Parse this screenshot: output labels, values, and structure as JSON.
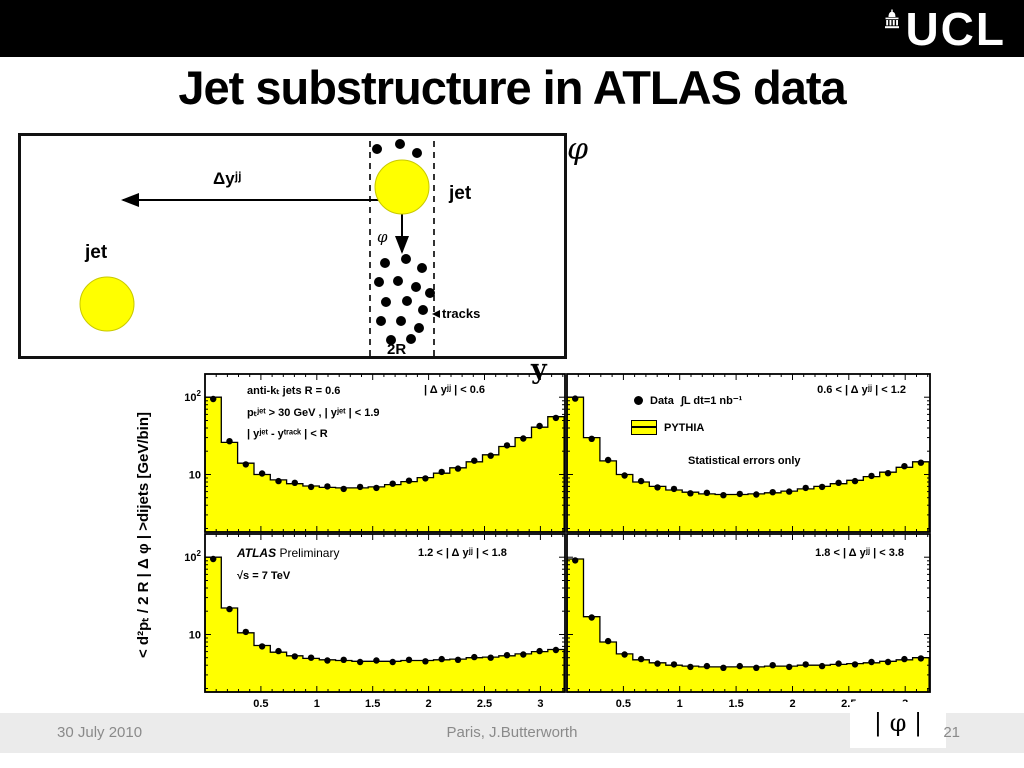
{
  "slide": {
    "title": "Jet substructure in ATLAS data",
    "logo_text": "UCL",
    "footer": {
      "date": "30 July 2010",
      "credit": "Paris, J.Butterworth",
      "page_number": "21"
    }
  },
  "diagram": {
    "dy_label": "Δyʲʲ",
    "jet_right_label": "jet",
    "jet_left_label": "jet",
    "phi_arrow_label": "φ",
    "tracks_label": "tracks",
    "width_label": "2R",
    "phi_axis_label": "φ",
    "y_axis_label": "y"
  },
  "chart_data": {
    "type": "area",
    "description": "Four-panel dijet |φ| distributions: yellow step histograms (PYTHIA) with black data points, log y-axis",
    "xlabel": "| φ |",
    "ylabel": "< d²pₜ / 2 R | Δ φ | >dijets   [GeV/bin]",
    "xlim": [
      0,
      3.22
    ],
    "ylim": [
      1.8,
      200
    ],
    "ylog": true,
    "x_ticks": [
      0.5,
      1,
      1.5,
      2,
      2.5,
      3
    ],
    "y_ticks": [
      10,
      100
    ],
    "bin_width": 0.146,
    "hist_fill": "#ffff00",
    "panels": [
      {
        "id": "top_left",
        "range_label": "| Δ yʲʲ | < 0.6",
        "hist": [
          100,
          26,
          14,
          10,
          8.5,
          7.6,
          7.1,
          6.8,
          6.7,
          6.7,
          6.9,
          7.4,
          8.1,
          9.1,
          10.4,
          12.2,
          14.6,
          18,
          23,
          30,
          41,
          56
        ],
        "points": [
          95,
          27,
          13.5,
          10.3,
          8.2,
          7.8,
          6.9,
          7.0,
          6.5,
          6.9,
          6.7,
          7.6,
          8.3,
          8.9,
          10.8,
          11.9,
          15.1,
          17.5,
          23.8,
          29.2,
          42.5,
          54
        ]
      },
      {
        "id": "top_right",
        "range_label": "0.6 < | Δ yʲʲ | < 1.2",
        "hist": [
          100,
          30,
          15,
          10,
          8,
          7,
          6.3,
          5.9,
          5.6,
          5.5,
          5.5,
          5.6,
          5.8,
          6.1,
          6.5,
          7.0,
          7.6,
          8.4,
          9.4,
          10.7,
          12.4,
          14.6
        ],
        "points": [
          96,
          29,
          15.4,
          9.7,
          8.2,
          6.8,
          6.5,
          5.7,
          5.8,
          5.4,
          5.6,
          5.5,
          5.9,
          6.0,
          6.7,
          6.9,
          7.8,
          8.2,
          9.6,
          10.4,
          12.8,
          14.2
        ]
      },
      {
        "id": "bottom_left",
        "range_label": "1.2 < | Δ yʲʲ | < 1.8",
        "hist": [
          100,
          22,
          10.5,
          7.2,
          5.9,
          5.3,
          4.9,
          4.7,
          4.6,
          4.5,
          4.5,
          4.5,
          4.6,
          4.6,
          4.7,
          4.8,
          5.0,
          5.1,
          5.3,
          5.6,
          6.0,
          6.4
        ],
        "points": [
          95,
          21.3,
          10.8,
          7.0,
          6.1,
          5.2,
          5.0,
          4.6,
          4.7,
          4.4,
          4.6,
          4.4,
          4.7,
          4.5,
          4.8,
          4.7,
          5.1,
          5.0,
          5.4,
          5.5,
          6.1,
          6.3
        ]
      },
      {
        "id": "bottom_right",
        "range_label": "1.8 < | Δ yʲʲ | < 3.8",
        "hist": [
          95,
          17,
          8.0,
          5.6,
          4.7,
          4.3,
          4.0,
          3.9,
          3.8,
          3.8,
          3.8,
          3.8,
          3.9,
          3.9,
          4.0,
          4.0,
          4.1,
          4.2,
          4.3,
          4.5,
          4.7,
          5.0
        ],
        "points": [
          91,
          16.6,
          8.2,
          5.5,
          4.8,
          4.2,
          4.1,
          3.8,
          3.9,
          3.7,
          3.9,
          3.7,
          4.0,
          3.8,
          4.1,
          3.9,
          4.2,
          4.1,
          4.4,
          4.4,
          4.8,
          4.9
        ]
      }
    ],
    "annotations": {
      "jet_def": "anti-kₜ jets R = 0.6",
      "cuts1": "pₜʲᵉᵗ > 30 GeV , | yʲᵉᵗ | < 1.9",
      "cuts2": "| yʲᵉᵗ - yᵗʳᵃᶜᵏ | < R",
      "legend_data": "Data",
      "legend_lumi": "∫L dt=1 nb⁻¹",
      "legend_pythia": "PYTHIA",
      "stat_note": "Statistical errors only",
      "bl_exp": "ATLAS",
      "bl_prelim": "Preliminary",
      "bl_energy": "√s = 7 TeV"
    }
  }
}
